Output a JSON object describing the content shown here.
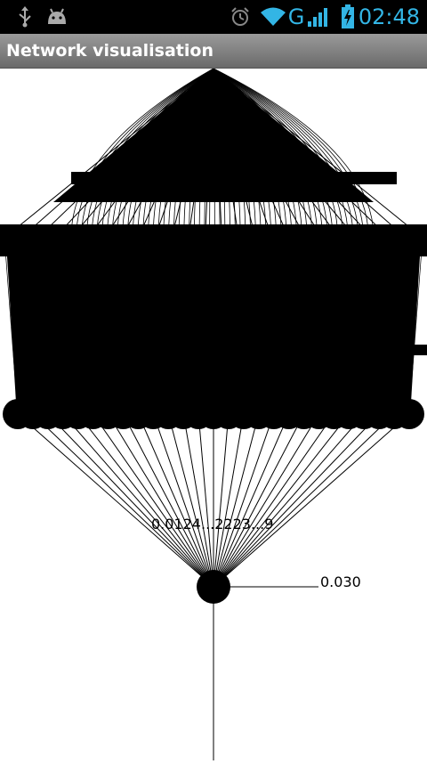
{
  "status_bar": {
    "time": "02:48",
    "network_type": "G",
    "icons": [
      "usb-icon",
      "android-debug-icon",
      "alarm-icon",
      "wifi-icon",
      "signal-icon",
      "battery-charging-icon"
    ],
    "accent_color": "#33b5e5"
  },
  "app": {
    "title": "Network visualisation"
  },
  "network": {
    "output_value": "0.030",
    "hidden_values_overlap": "0.0124...2223...9",
    "layer_sizes": {
      "input": 1,
      "hidden_a": 26,
      "hidden_b": 27,
      "output": 1
    }
  }
}
